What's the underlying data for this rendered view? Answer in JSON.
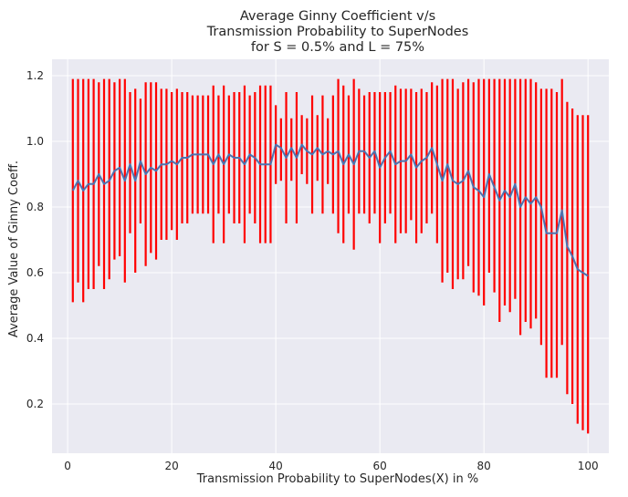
{
  "chart_data": {
    "type": "line",
    "title_lines": [
      "Average Ginny Coefficient v/s",
      "Transmission Probability to SuperNodes",
      "for S = 0.5% and L = 75%"
    ],
    "xlabel": "Transmission Probability to SuperNodes(X) in %",
    "ylabel": "Average Value of Ginny Coeff.",
    "xlim": [
      -3,
      104
    ],
    "ylim": [
      0.05,
      1.25
    ],
    "xticks": [
      0,
      20,
      40,
      60,
      80,
      100
    ],
    "xtick_labels": [
      "0",
      "20",
      "40",
      "60",
      "80",
      "100"
    ],
    "yticks": [
      0.2,
      0.4,
      0.6,
      0.8,
      1.0,
      1.2
    ],
    "ytick_labels": [
      "0.2",
      "0.4",
      "0.6",
      "0.8",
      "1.0",
      "1.2"
    ],
    "grid": true,
    "background_color": "#eaeaf2",
    "grid_color": "#ffffff",
    "line_color": "#4c72b0",
    "errorbar_color": "#ff0000",
    "series": [
      {
        "x": [
          1,
          2,
          3,
          4,
          5,
          6,
          7,
          8,
          9,
          10,
          11,
          12,
          13,
          14,
          15,
          16,
          17,
          18,
          19,
          20,
          21,
          22,
          23,
          24,
          25,
          26,
          27,
          28,
          29,
          30,
          31,
          32,
          33,
          34,
          35,
          36,
          37,
          38,
          39,
          40,
          41,
          42,
          43,
          44,
          45,
          46,
          47,
          48,
          49,
          50,
          51,
          52,
          53,
          54,
          55,
          56,
          57,
          58,
          59,
          60,
          61,
          62,
          63,
          64,
          65,
          66,
          67,
          68,
          69,
          70,
          71,
          72,
          73,
          74,
          75,
          76,
          77,
          78,
          79,
          80,
          81,
          82,
          83,
          84,
          85,
          86,
          87,
          88,
          89,
          90,
          91,
          92,
          93,
          94,
          95,
          96,
          97,
          98,
          99,
          100
        ],
        "y": [
          0.85,
          0.88,
          0.85,
          0.87,
          0.87,
          0.9,
          0.87,
          0.88,
          0.91,
          0.92,
          0.88,
          0.93,
          0.88,
          0.94,
          0.9,
          0.92,
          0.91,
          0.93,
          0.93,
          0.94,
          0.93,
          0.95,
          0.95,
          0.96,
          0.96,
          0.96,
          0.96,
          0.93,
          0.96,
          0.93,
          0.96,
          0.95,
          0.95,
          0.93,
          0.96,
          0.95,
          0.93,
          0.93,
          0.93,
          0.99,
          0.98,
          0.95,
          0.98,
          0.95,
          0.99,
          0.97,
          0.96,
          0.98,
          0.96,
          0.97,
          0.96,
          0.97,
          0.93,
          0.96,
          0.93,
          0.97,
          0.97,
          0.95,
          0.97,
          0.92,
          0.95,
          0.97,
          0.93,
          0.94,
          0.94,
          0.96,
          0.92,
          0.94,
          0.95,
          0.98,
          0.93,
          0.88,
          0.93,
          0.88,
          0.87,
          0.88,
          0.91,
          0.86,
          0.85,
          0.83,
          0.9,
          0.86,
          0.82,
          0.85,
          0.83,
          0.87,
          0.8,
          0.83,
          0.81,
          0.83,
          0.8,
          0.72,
          0.72,
          0.72,
          0.79,
          0.68,
          0.65,
          0.61,
          0.6,
          0.59
        ],
        "yerr_low": [
          0.51,
          0.57,
          0.51,
          0.55,
          0.55,
          0.62,
          0.55,
          0.58,
          0.64,
          0.65,
          0.57,
          0.72,
          0.6,
          0.75,
          0.62,
          0.66,
          0.64,
          0.7,
          0.7,
          0.73,
          0.7,
          0.75,
          0.75,
          0.78,
          0.78,
          0.78,
          0.78,
          0.69,
          0.78,
          0.69,
          0.78,
          0.75,
          0.75,
          0.69,
          0.78,
          0.75,
          0.69,
          0.69,
          0.69,
          0.87,
          0.88,
          0.75,
          0.88,
          0.75,
          0.9,
          0.87,
          0.78,
          0.88,
          0.78,
          0.87,
          0.78,
          0.72,
          0.69,
          0.78,
          0.67,
          0.78,
          0.78,
          0.75,
          0.78,
          0.69,
          0.75,
          0.78,
          0.69,
          0.72,
          0.72,
          0.76,
          0.69,
          0.72,
          0.75,
          0.78,
          0.69,
          0.57,
          0.6,
          0.55,
          0.58,
          0.58,
          0.62,
          0.54,
          0.53,
          0.5,
          0.6,
          0.54,
          0.45,
          0.5,
          0.48,
          0.52,
          0.41,
          0.45,
          0.43,
          0.46,
          0.38,
          0.28,
          0.28,
          0.28,
          0.38,
          0.23,
          0.2,
          0.14,
          0.12,
          0.11
        ],
        "yerr_high": [
          1.19,
          1.19,
          1.19,
          1.19,
          1.19,
          1.18,
          1.19,
          1.19,
          1.18,
          1.19,
          1.19,
          1.15,
          1.16,
          1.13,
          1.18,
          1.18,
          1.18,
          1.16,
          1.16,
          1.15,
          1.16,
          1.15,
          1.15,
          1.14,
          1.14,
          1.14,
          1.14,
          1.17,
          1.14,
          1.17,
          1.14,
          1.15,
          1.15,
          1.17,
          1.14,
          1.15,
          1.17,
          1.17,
          1.17,
          1.11,
          1.07,
          1.15,
          1.07,
          1.15,
          1.08,
          1.07,
          1.14,
          1.08,
          1.14,
          1.07,
          1.14,
          1.19,
          1.17,
          1.14,
          1.19,
          1.16,
          1.14,
          1.15,
          1.15,
          1.15,
          1.15,
          1.15,
          1.17,
          1.16,
          1.16,
          1.16,
          1.15,
          1.16,
          1.15,
          1.18,
          1.17,
          1.19,
          1.19,
          1.19,
          1.16,
          1.18,
          1.19,
          1.18,
          1.19,
          1.19,
          1.19,
          1.19,
          1.19,
          1.19,
          1.19,
          1.19,
          1.19,
          1.19,
          1.19,
          1.18,
          1.16,
          1.16,
          1.16,
          1.15,
          1.19,
          1.12,
          1.1,
          1.08,
          1.08,
          1.08
        ]
      }
    ]
  }
}
